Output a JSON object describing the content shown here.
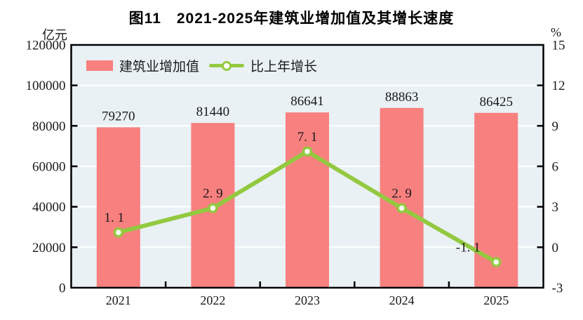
{
  "title": "图11　2021-2025年建筑业增加值及其增长速度",
  "axes": {
    "left_unit": "亿元",
    "right_unit": "%"
  },
  "legend": {
    "items": [
      {
        "label": "建筑业增加值",
        "type": "bar"
      },
      {
        "label": "比上年增长",
        "type": "line"
      }
    ]
  },
  "colors": {
    "bar": "#f8807f",
    "line": "#93c940",
    "marker_fill": "#ffffff",
    "plot_background": "#e9f1f4",
    "gridline": "#ffffff",
    "axis_frame": "#000000",
    "text": "#1a1a1a"
  },
  "chart_data": {
    "type": "bar+line",
    "categories": [
      "2021",
      "2022",
      "2023",
      "2024",
      "2025"
    ],
    "series": [
      {
        "name": "建筑业增加值",
        "type": "bar",
        "axis": "left",
        "unit": "亿元",
        "values": [
          79270,
          81440,
          86641,
          88863,
          86425
        ],
        "labels": [
          "79270",
          "81440",
          "86641",
          "88863",
          "86425"
        ],
        "color": "#f8807f"
      },
      {
        "name": "比上年增长",
        "type": "line",
        "axis": "right",
        "unit": "%",
        "values": [
          1.1,
          2.9,
          7.1,
          2.9,
          -1.1
        ],
        "labels": [
          "1. 1",
          "2. 9",
          "7. 1",
          "2. 9",
          "-1. 1"
        ],
        "color": "#93c940"
      }
    ],
    "left_axis": {
      "unit": "亿元",
      "min": 0,
      "max": 120000,
      "step": 20000,
      "ticks": [
        "0",
        "20000",
        "40000",
        "60000",
        "80000",
        "100000",
        "120000"
      ]
    },
    "right_axis": {
      "unit": "%",
      "min": -3,
      "max": 15,
      "step": 3,
      "ticks": [
        "-3",
        "0",
        "3",
        "6",
        "9",
        "12",
        "15"
      ]
    },
    "grid": true,
    "legend_position": "top-left-inside"
  }
}
